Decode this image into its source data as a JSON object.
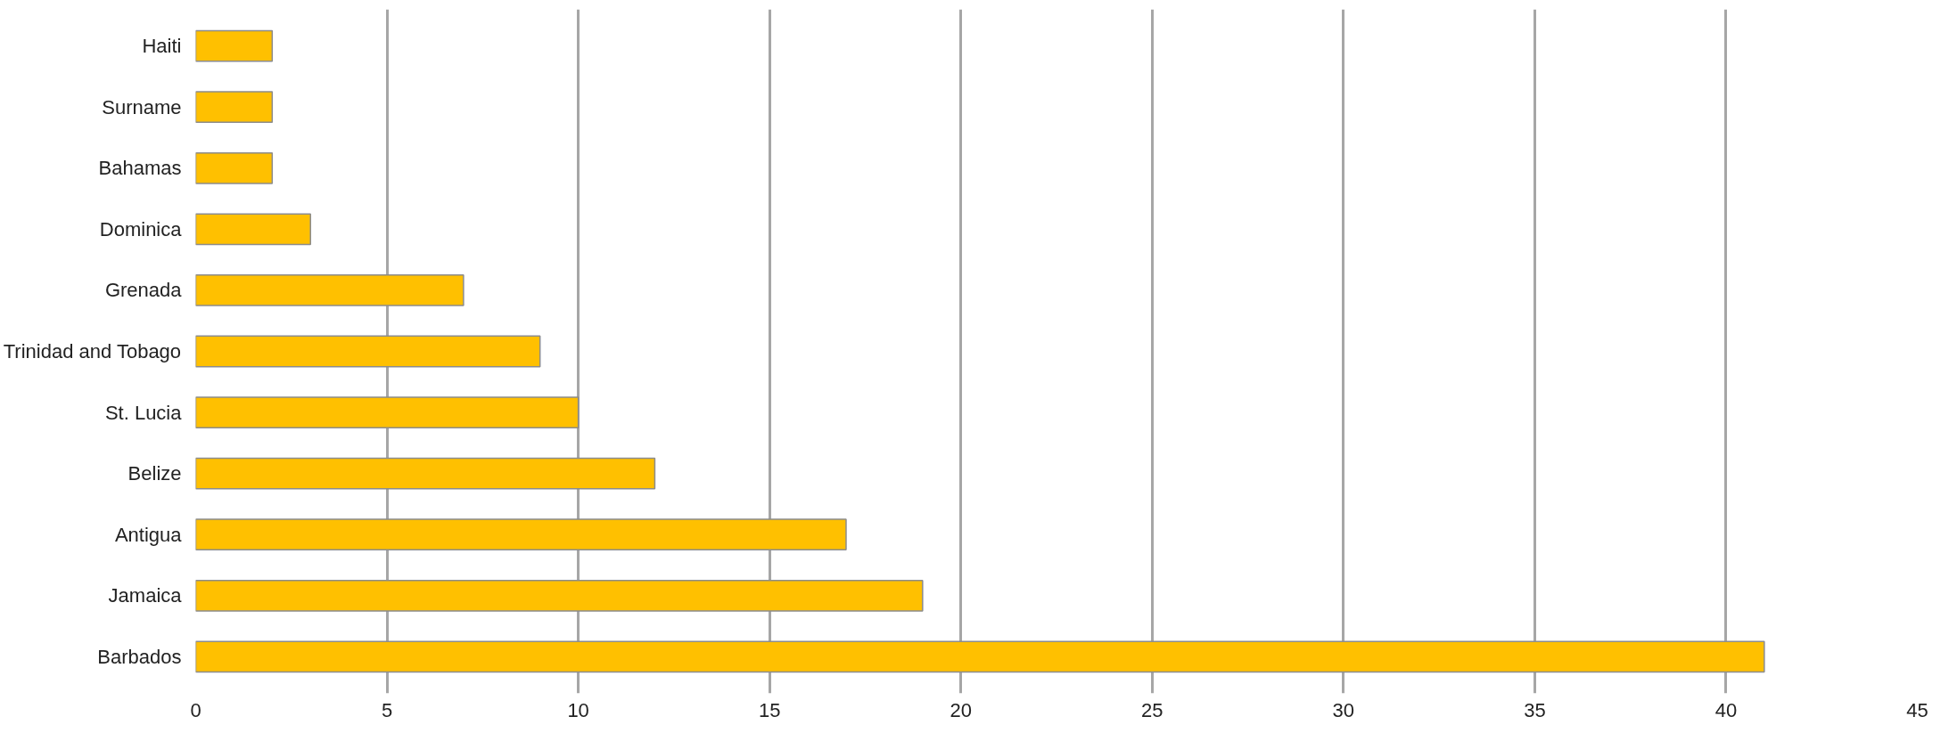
{
  "chart_data": {
    "type": "bar",
    "orientation": "horizontal",
    "categories": [
      "Haiti",
      "Surname",
      "Bahamas",
      "Dominica",
      "Grenada",
      "Trinidad and Tobago",
      "St. Lucia",
      "Belize",
      "Antigua",
      "Jamaica",
      "Barbados"
    ],
    "values": [
      2,
      2,
      2,
      3,
      7,
      9,
      10,
      12,
      17,
      19,
      41
    ],
    "color": "#ffc000",
    "xlim": [
      0,
      45
    ],
    "xticks": [
      0,
      5,
      10,
      15,
      20,
      25,
      30,
      35,
      40,
      45
    ],
    "grid": "x"
  }
}
